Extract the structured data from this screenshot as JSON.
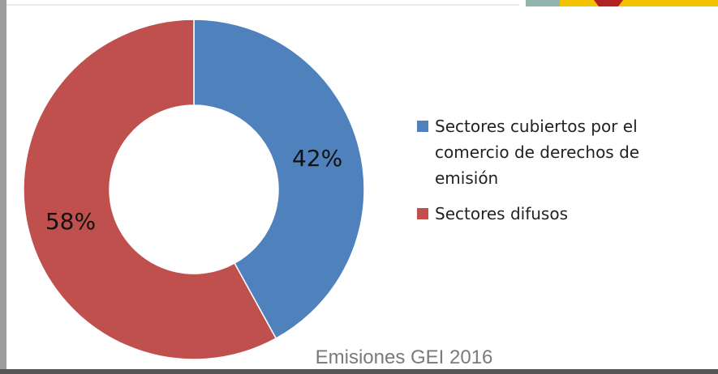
{
  "chart_data": {
    "type": "pie",
    "categories": [
      "Sectores cubiertos por el comercio de derechos de emisión",
      "Sectores difusos"
    ],
    "values": [
      42,
      58
    ],
    "data_labels": [
      "42%",
      "58%"
    ],
    "colors": [
      "#4F81BD",
      "#C0504D"
    ],
    "donut": true,
    "legend_position": "right",
    "legend": [
      {
        "lines": [
          "Sectores cubiertos por el",
          "comercio de derechos de",
          "emisión"
        ],
        "color": "#4F81BD"
      },
      {
        "lines": [
          "Sectores difusos"
        ],
        "color": "#C0504D"
      }
    ]
  },
  "footer": {
    "caption": "Emisiones GEI 2016"
  },
  "colors": {
    "frame": "#9e9e9e",
    "corner_teal": "#8fb4ad",
    "corner_gold": "#f2c200",
    "corner_red": "#b22222"
  }
}
